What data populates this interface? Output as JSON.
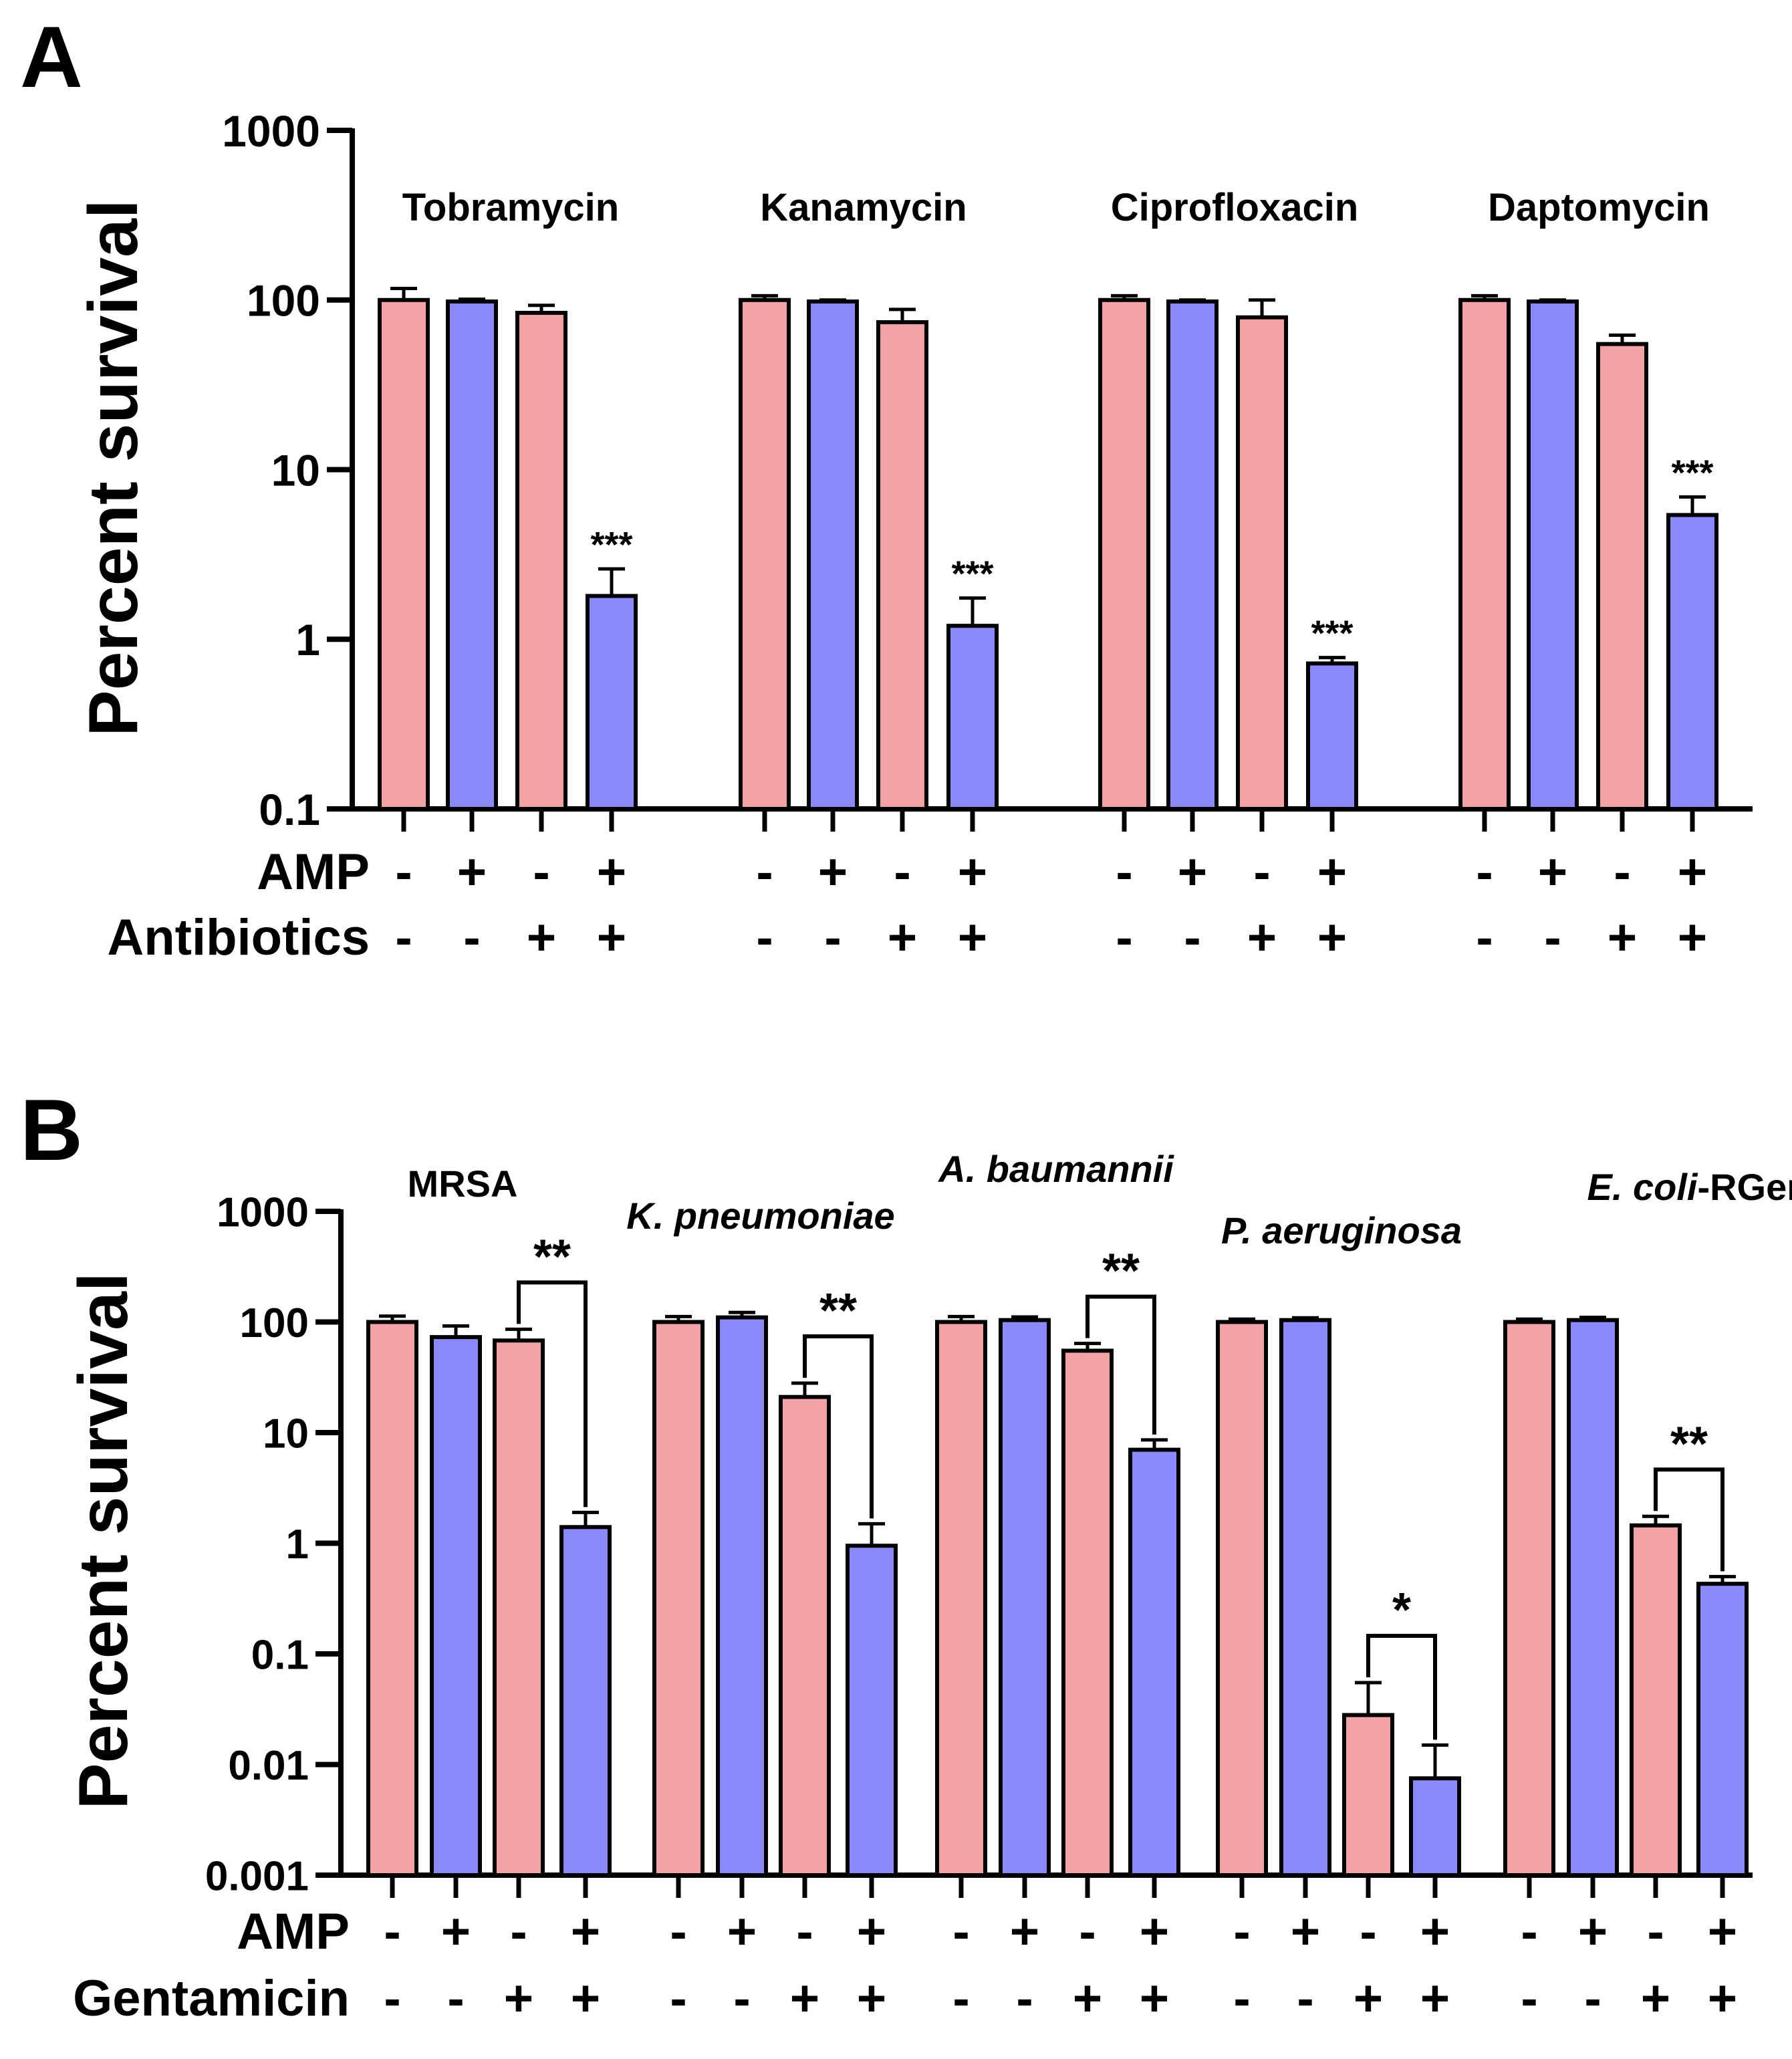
{
  "colors": {
    "red_bar": "#f4a3a5",
    "blue_bar": "#8b8afc",
    "axis": "#000000"
  },
  "chart_data": [
    {
      "panel_label": "A",
      "type": "bar",
      "scale": "log",
      "ylabel": "Percent survival",
      "ylim": [
        0.1,
        1000
      ],
      "yticks": [
        {
          "value": 1000,
          "label": "1000"
        },
        {
          "value": 100,
          "label": "100"
        },
        {
          "value": 10,
          "label": "10"
        },
        {
          "value": 1,
          "label": "1"
        },
        {
          "value": 0.1,
          "label": "0.1"
        }
      ],
      "groups": [
        {
          "label": "Tobramycin",
          "italic": false,
          "values": [
            100,
            98,
            84,
            1.8
          ],
          "errors": [
            117,
            101,
            93,
            2.6
          ],
          "significance": [
            "",
            "",
            "",
            "***"
          ],
          "bracket": null
        },
        {
          "label": "Kanamycin",
          "italic": false,
          "values": [
            100,
            98,
            74,
            1.2
          ],
          "errors": [
            106,
            100,
            88,
            1.75
          ],
          "significance": [
            "",
            "",
            "",
            "***"
          ],
          "bracket": null
        },
        {
          "label": "Ciprofloxacin",
          "italic": false,
          "values": [
            100,
            98,
            79,
            0.72
          ],
          "errors": [
            106,
            100,
            100,
            0.78
          ],
          "significance": [
            "",
            "",
            "",
            "***"
          ],
          "bracket": null
        },
        {
          "label": "Daptomycin",
          "italic": false,
          "values": [
            100,
            98,
            55,
            5.4
          ],
          "errors": [
            106,
            100,
            62,
            6.9
          ],
          "significance": [
            "",
            "",
            "",
            "***"
          ],
          "bracket": null
        }
      ],
      "conditions": [
        {
          "label": "AMP",
          "signs": [
            "-",
            "+",
            "-",
            "+"
          ]
        },
        {
          "label": "Antibiotics",
          "signs": [
            "-",
            "-",
            "+",
            "+"
          ]
        }
      ]
    },
    {
      "panel_label": "B",
      "type": "bar",
      "scale": "log",
      "ylabel": "Percent survival",
      "ylim": [
        0.001,
        1000
      ],
      "yticks": [
        {
          "value": 1000,
          "label": "1000"
        },
        {
          "value": 100,
          "label": "100"
        },
        {
          "value": 10,
          "label": "10"
        },
        {
          "value": 1,
          "label": "1"
        },
        {
          "value": 0.1,
          "label": "0.1"
        },
        {
          "value": 0.01,
          "label": "0.01"
        },
        {
          "value": 0.001,
          "label": "0.001"
        }
      ],
      "groups": [
        {
          "label": "MRSA",
          "italic": false,
          "values": [
            100,
            73,
            68,
            1.4
          ],
          "errors": [
            113,
            92,
            86,
            1.9
          ],
          "significance": [
            "",
            "",
            "",
            ""
          ],
          "bracket": "**"
        },
        {
          "label": "K. pneumoniae",
          "italic": true,
          "values": [
            100,
            110,
            21,
            0.95
          ],
          "errors": [
            112,
            122,
            28,
            1.5
          ],
          "significance": [
            "",
            "",
            "",
            ""
          ],
          "bracket": "**"
        },
        {
          "label": "A. baumannii",
          "italic": true,
          "values": [
            100,
            104,
            55,
            7
          ],
          "errors": [
            112,
            111,
            64,
            8.6
          ],
          "significance": [
            "",
            "",
            "",
            ""
          ],
          "bracket": "**"
        },
        {
          "label": "P. aeruginosa",
          "italic": true,
          "values": [
            100,
            104,
            0.028,
            0.0075
          ],
          "errors": [
            106,
            109,
            0.055,
            0.015
          ],
          "significance": [
            "",
            "",
            "",
            ""
          ],
          "bracket": "*"
        },
        {
          "label_italic": "E. coli",
          "label_normal": "-RGen",
          "italic": true,
          "values": [
            100,
            104,
            1.45,
            0.43
          ],
          "errors": [
            106,
            110,
            1.75,
            0.5
          ],
          "significance": [
            "",
            "",
            "",
            ""
          ],
          "bracket": "**"
        }
      ],
      "conditions": [
        {
          "label": "AMP",
          "signs": [
            "-",
            "+",
            "-",
            "+"
          ]
        },
        {
          "label": "Gentamicin",
          "signs": [
            "-",
            "-",
            "+",
            "+"
          ]
        }
      ]
    }
  ]
}
